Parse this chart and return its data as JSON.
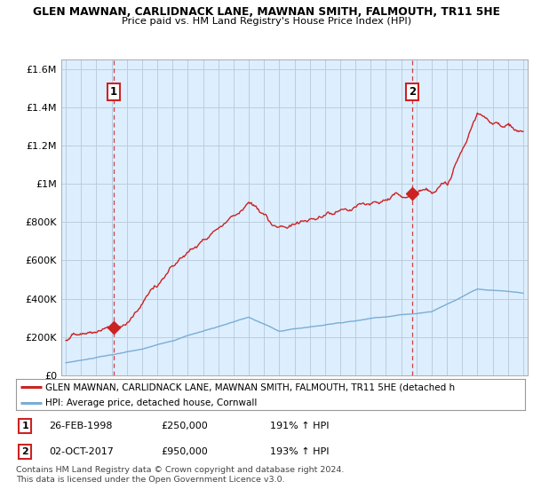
{
  "title1": "GLEN MAWNAN, CARLIDNACK LANE, MAWNAN SMITH, FALMOUTH, TR11 5HE",
  "title2": "Price paid vs. HM Land Registry's House Price Index (HPI)",
  "ylim": [
    0,
    1650000
  ],
  "yticks": [
    0,
    200000,
    400000,
    600000,
    800000,
    1000000,
    1200000,
    1400000,
    1600000
  ],
  "ytick_labels": [
    "£0",
    "£200K",
    "£400K",
    "£600K",
    "£800K",
    "£1M",
    "£1.2M",
    "£1.4M",
    "£1.6M"
  ],
  "xmin_year": 1995,
  "xmax_year": 2025,
  "xtick_years": [
    1995,
    1996,
    1997,
    1998,
    1999,
    2000,
    2001,
    2002,
    2003,
    2004,
    2005,
    2006,
    2007,
    2008,
    2009,
    2010,
    2011,
    2012,
    2013,
    2014,
    2015,
    2016,
    2017,
    2018,
    2019,
    2020,
    2021,
    2022,
    2023,
    2024,
    2025
  ],
  "red_line_color": "#cc2222",
  "blue_line_color": "#7aadd4",
  "chart_bg_color": "#ddeeff",
  "bg_color": "#ffffff",
  "grid_color": "#bbccdd",
  "sale1_year": 1998.15,
  "sale1_price": 250000,
  "sale2_year": 2017.75,
  "sale2_price": 950000,
  "legend_text1": "GLEN MAWNAN, CARLIDNACK LANE, MAWNAN SMITH, FALMOUTH, TR11 5HE (detached h",
  "legend_text2": "HPI: Average price, detached house, Cornwall",
  "ann1_date": "26-FEB-1998",
  "ann1_price": "£250,000",
  "ann1_hpi": "191% ↑ HPI",
  "ann2_date": "02-OCT-2017",
  "ann2_price": "£950,000",
  "ann2_hpi": "193% ↑ HPI",
  "footer1": "Contains HM Land Registry data © Crown copyright and database right 2024.",
  "footer2": "This data is licensed under the Open Government Licence v3.0."
}
